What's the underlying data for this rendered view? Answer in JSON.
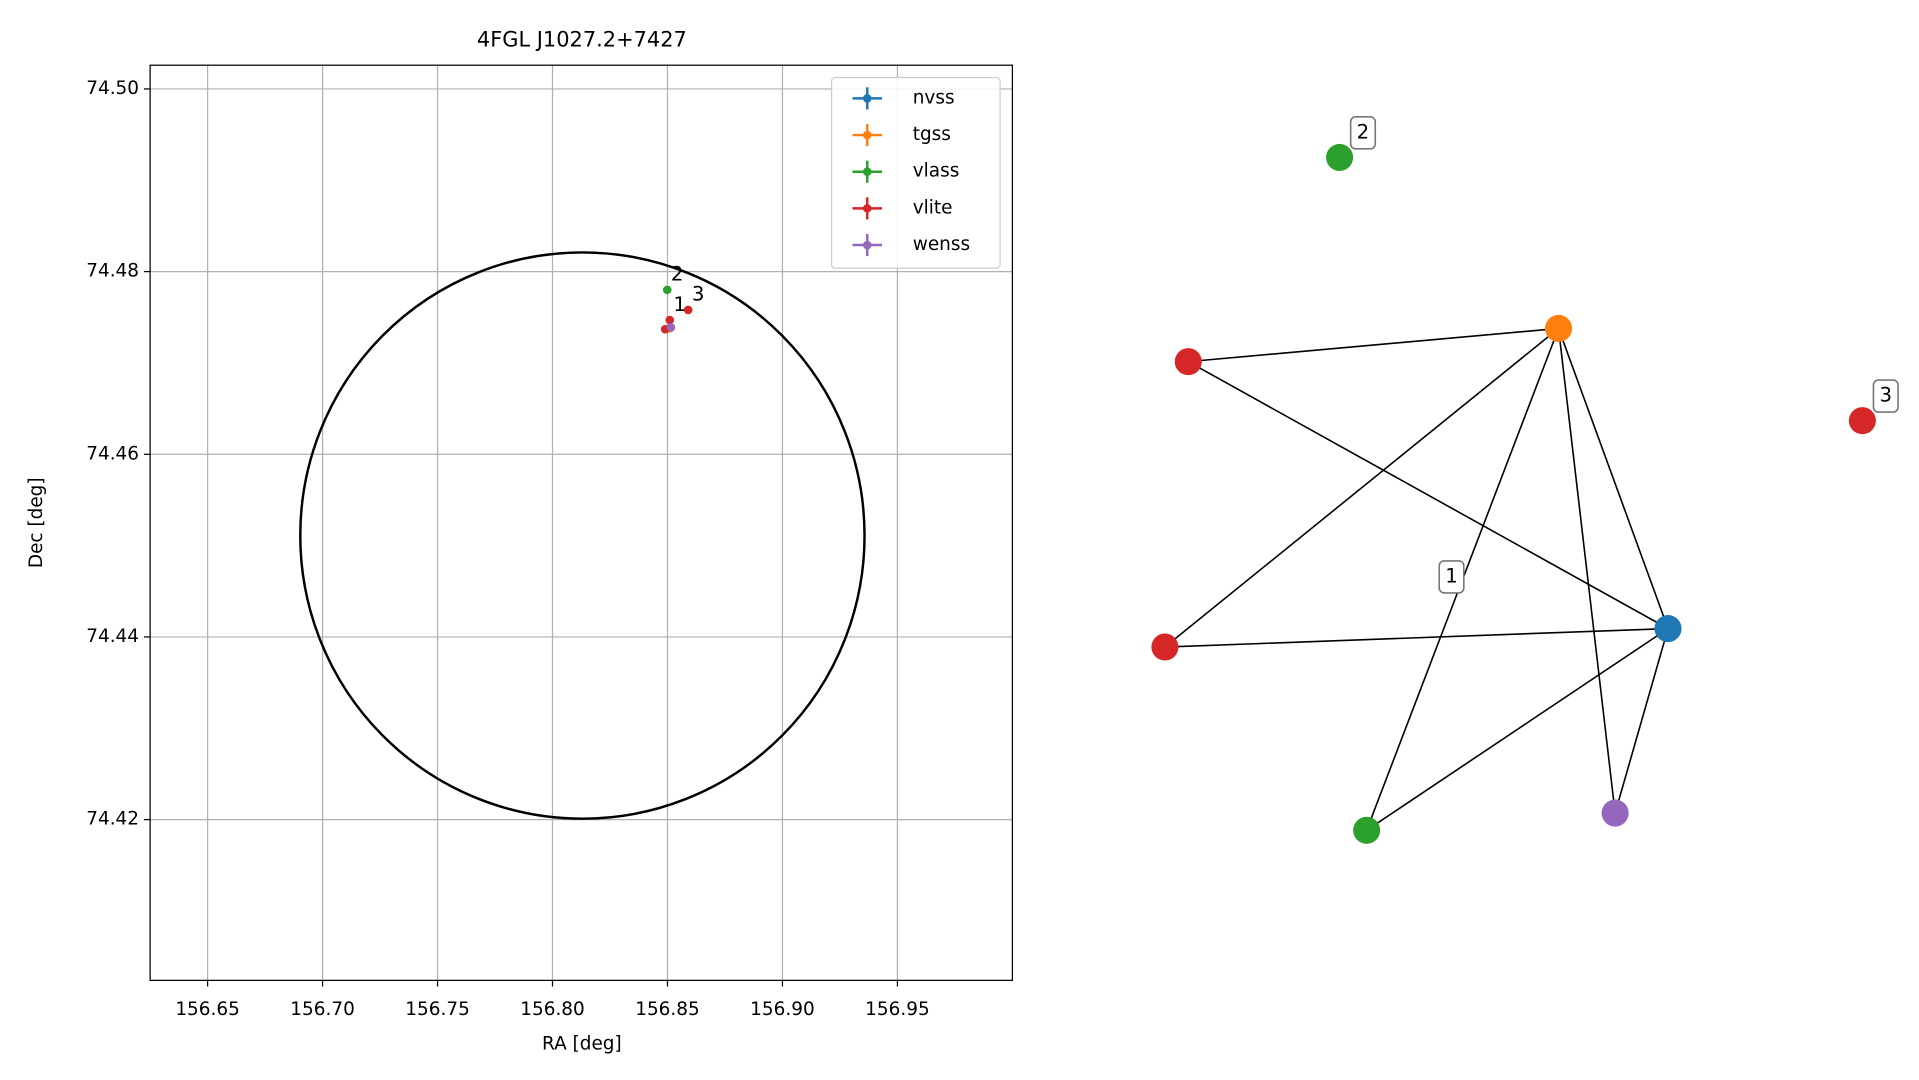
{
  "chart_data": [
    {
      "type": "scatter",
      "title": "4FGL J1027.2+7427",
      "x_label": "RA [deg]",
      "y_label": "Dec [deg]",
      "xlim": [
        156.625,
        157.0
      ],
      "ylim": [
        74.4024,
        74.5026
      ],
      "xticks": [
        156.65,
        {
          "value": 156.7,
          "label": "156.70"
        },
        156.75,
        {
          "value": 156.8,
          "label": "156.80"
        },
        156.85,
        {
          "value": 156.9,
          "label": "156.90"
        },
        156.95
      ],
      "yticks": [
        74.42,
        74.44,
        74.46,
        74.48,
        {
          "value": 74.5,
          "label": "74.50"
        }
      ],
      "grid": true,
      "legend": "upper right",
      "circle": {
        "ra": 156.813,
        "dec": 74.4511,
        "ra_radius": 0.1227,
        "dec_radius": 0.031,
        "color": "#000000"
      },
      "series": [
        {
          "name": "nvss",
          "color": "#1f77b4",
          "x": [
            156.851
          ],
          "y": [
            74.4738
          ]
        },
        {
          "name": "tgss",
          "color": "#ff7f0e",
          "x": [
            156.851
          ],
          "y": [
            74.4738
          ]
        },
        {
          "name": "vlass",
          "color": "#2ca02c",
          "x": [
            156.8499
          ],
          "y": [
            74.478
          ]
        },
        {
          "name": "vlite",
          "color": "#d62728",
          "x": [
            156.851,
            156.859,
            156.849
          ],
          "y": [
            74.4747,
            74.4758,
            74.4737
          ]
        },
        {
          "name": "wenss",
          "color": "#9467bd",
          "x": [
            156.8515
          ],
          "y": [
            74.4739
          ]
        }
      ],
      "annotations": [
        {
          "text": "1",
          "x": 156.851,
          "y": 74.4747
        },
        {
          "text": "2",
          "x": 156.8499,
          "y": 74.478
        },
        {
          "text": "3",
          "x": 156.859,
          "y": 74.4758
        }
      ]
    },
    {
      "type": "graph",
      "nodes": [
        {
          "color": "#d62728"
        },
        {
          "color": "#ff7f0e"
        },
        {
          "color": "#d62728"
        },
        {
          "color": "#1f77b4"
        },
        {
          "color": "#2ca02c"
        },
        {
          "color": "#9467bd"
        },
        {
          "color": "#2ca02c"
        },
        {
          "color": "#d62728"
        }
      ],
      "edges": [
        [
          0,
          1
        ],
        [
          0,
          3
        ],
        [
          1,
          2
        ],
        [
          1,
          4
        ],
        [
          1,
          3
        ],
        [
          1,
          5
        ],
        [
          2,
          3
        ],
        [
          3,
          4
        ],
        [
          3,
          5
        ]
      ],
      "labels": [
        {
          "text": "1"
        },
        {
          "text": "2"
        },
        {
          "text": "3"
        }
      ]
    }
  ]
}
